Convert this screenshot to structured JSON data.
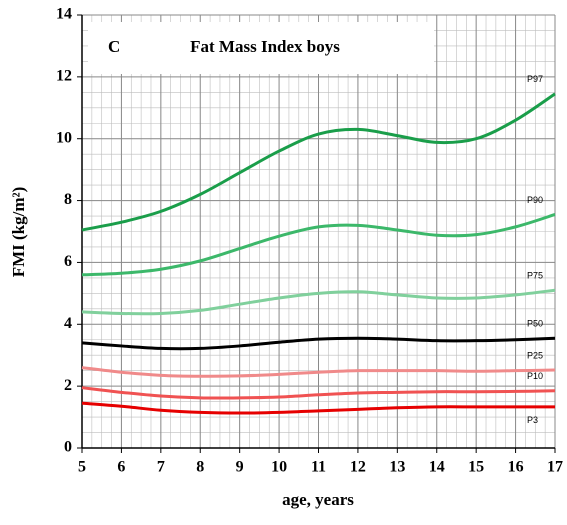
{
  "chart_data": {
    "type": "line",
    "panel": "C",
    "title": "Fat Mass Index boys",
    "x_label": "age, years",
    "y_label": "FMI (kg/m²)",
    "x": [
      5,
      6,
      7,
      8,
      9,
      10,
      11,
      12,
      13,
      14,
      15,
      16,
      17
    ],
    "xlim": [
      5,
      17
    ],
    "xticks": [
      5,
      6,
      7,
      8,
      9,
      10,
      11,
      12,
      13,
      14,
      15,
      16,
      17
    ],
    "ylim": [
      0,
      14
    ],
    "yticks": [
      0,
      2,
      4,
      6,
      8,
      10,
      12,
      14
    ],
    "grid": true,
    "series": [
      {
        "name": "P97",
        "color": "#1a9e4a",
        "values": [
          7.05,
          7.3,
          7.65,
          8.2,
          8.9,
          9.6,
          10.15,
          10.3,
          10.1,
          9.88,
          10.0,
          10.6,
          11.45
        ]
      },
      {
        "name": "P90",
        "color": "#3cb86a",
        "values": [
          5.6,
          5.65,
          5.78,
          6.05,
          6.45,
          6.85,
          7.15,
          7.2,
          7.05,
          6.88,
          6.9,
          7.15,
          7.55
        ]
      },
      {
        "name": "P75",
        "color": "#80d09c",
        "values": [
          4.4,
          4.35,
          4.35,
          4.45,
          4.65,
          4.85,
          5.0,
          5.05,
          4.95,
          4.85,
          4.85,
          4.95,
          5.1
        ]
      },
      {
        "name": "P50",
        "color": "#000000",
        "values": [
          3.4,
          3.3,
          3.22,
          3.22,
          3.3,
          3.42,
          3.52,
          3.55,
          3.52,
          3.47,
          3.47,
          3.5,
          3.55
        ]
      },
      {
        "name": "P25",
        "color": "#f08a8a",
        "values": [
          2.6,
          2.45,
          2.35,
          2.32,
          2.33,
          2.38,
          2.45,
          2.5,
          2.5,
          2.5,
          2.48,
          2.5,
          2.52
        ]
      },
      {
        "name": "P10",
        "color": "#f05252",
        "values": [
          1.95,
          1.8,
          1.68,
          1.62,
          1.62,
          1.65,
          1.72,
          1.78,
          1.8,
          1.82,
          1.82,
          1.83,
          1.85
        ]
      },
      {
        "name": "P3",
        "color": "#e60000",
        "values": [
          1.45,
          1.35,
          1.22,
          1.15,
          1.13,
          1.15,
          1.2,
          1.25,
          1.3,
          1.33,
          1.33,
          1.33,
          1.33
        ]
      }
    ]
  }
}
